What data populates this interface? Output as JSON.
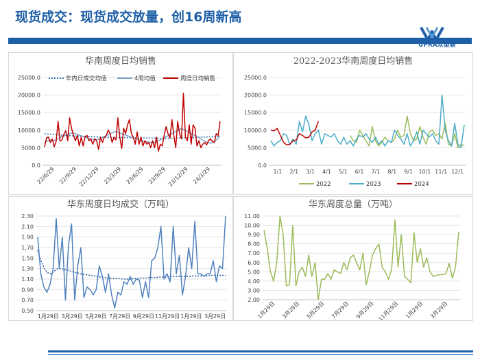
{
  "header": {
    "title": "现货成交：现货成交放量，创16周新高",
    "logo_text": "UPRA众塑联"
  },
  "chart_data": [
    {
      "type": "line",
      "title": "华南周度日均销售",
      "ylim": [
        0,
        25000
      ],
      "y_ticks": [
        "0.0",
        "5000.0",
        "10000.0",
        "15000.0",
        "20000.0",
        "25000.0"
      ],
      "x_tick_labels": [
        "22/6/29",
        "22/9/29",
        "22/12/29",
        "23/3/29",
        "23/6/29",
        "23/9/29",
        "23/12/29",
        "24/3/29"
      ],
      "series": [
        {
          "name": "年内日成交均值",
          "color": "#2e75b6",
          "style": "dotted",
          "values": [
            9000,
            8950,
            8900,
            8850,
            8800,
            8760,
            8720,
            8680,
            8640,
            8600,
            8560,
            8520,
            8480,
            8440,
            8400,
            8360,
            8320,
            8290,
            8260,
            8230,
            8200,
            8180,
            8160,
            8140,
            8120,
            8100,
            8080,
            8060,
            8040,
            8020,
            8000,
            7990,
            7980,
            7970,
            7960,
            7950,
            7940,
            7930,
            7920,
            7910,
            7900,
            7890,
            7880,
            7870,
            7860,
            7850,
            7840,
            7830,
            7820,
            7810,
            7800,
            7790,
            7780,
            7770,
            7760,
            7750,
            7740,
            7730,
            7720,
            7710,
            7700,
            7690,
            7680,
            7680,
            7680,
            7690,
            7700,
            7720,
            7740,
            7760,
            7780,
            7800,
            7820,
            7840,
            7860,
            7880,
            7900,
            7920,
            7940,
            7960,
            7980,
            8000,
            8020,
            8040,
            8060,
            8080,
            8100,
            8120,
            8140,
            8160,
            8180,
            8200
          ]
        },
        {
          "name": "4周均值",
          "color": "#7f9fc7",
          "style": "solid",
          "values": [
            6500,
            6800,
            7000,
            7200,
            7100,
            7000,
            7300,
            7600,
            7900,
            8200,
            8400,
            8600,
            8800,
            9000,
            9200,
            9100,
            9000,
            8800,
            8600,
            8400,
            8200,
            8000,
            7800,
            7600,
            7500,
            7400,
            7300,
            7300,
            7400,
            7600,
            7800,
            8100,
            8400,
            8700,
            9000,
            9200,
            9400,
            9600,
            9400,
            9200,
            9000,
            8800,
            8600,
            8400,
            8200,
            8000,
            7800,
            7600,
            7400,
            7200,
            7000,
            6900,
            6800,
            6700,
            6600,
            6500,
            6500,
            6600,
            6800,
            7000,
            7200,
            7500,
            7800,
            8100,
            8400,
            8700,
            9000,
            9300,
            9600,
            9900,
            10200,
            10500,
            10200,
            9900,
            9600,
            9300,
            9000,
            8700,
            8400,
            8100,
            7800,
            7500,
            7200,
            6900,
            6600,
            6400,
            6300,
            6400,
            6700,
            7200,
            7800,
            8400
          ]
        },
        {
          "name": "周度日均销售",
          "color": "#c00000",
          "style": "solid",
          "values": [
            5200,
            7800,
            8000,
            6500,
            7500,
            5300,
            6800,
            12500,
            6900,
            7200,
            8800,
            9800,
            7000,
            13500,
            10500,
            8500,
            7000,
            8500,
            5500,
            8000,
            5500,
            8200,
            8500,
            7000,
            7500,
            6000,
            7500,
            7000,
            4500,
            8000,
            6500,
            8000,
            8500,
            10000,
            9000,
            6500,
            8000,
            7200,
            13500,
            8000,
            4800,
            10500,
            9000,
            11500,
            13000,
            9000,
            8000,
            6000,
            9500,
            6000,
            8000,
            5500,
            7000,
            6000,
            6500,
            5000,
            7000,
            5000,
            8000,
            4000,
            6000,
            5500,
            8500,
            11000,
            9000,
            7800,
            13000,
            8500,
            5000,
            12500,
            9000,
            7500,
            20500,
            8000,
            7000,
            11500,
            6000,
            11500,
            10500,
            5500,
            7000,
            5000,
            6000,
            6500,
            5800,
            7000,
            7500,
            6800,
            6500,
            9000,
            8500,
            12500
          ]
        }
      ]
    },
    {
      "type": "line",
      "title": "2022-2023华南周度日均销售",
      "ylim": [
        0,
        25000
      ],
      "y_ticks": [
        "0.0",
        "5000.0",
        "10000.0",
        "15000.0",
        "20000.0",
        "25000.0"
      ],
      "x_tick_labels": [
        "1/1",
        "2/1",
        "3/1",
        "4/1",
        "5/1",
        "6/1",
        "7/1",
        "8/1",
        "9/1",
        "10/1",
        "11/1",
        "12/1"
      ],
      "series": [
        {
          "name": "2022",
          "color": "#9bbb59",
          "style": "solid",
          "values": [
            null,
            null,
            null,
            null,
            null,
            null,
            null,
            null,
            null,
            null,
            null,
            null,
            null,
            null,
            null,
            null,
            null,
            null,
            null,
            null,
            null,
            null,
            null,
            null,
            null,
            8500,
            7000,
            6500,
            10000,
            8500,
            7000,
            5500,
            11000,
            7000,
            5500,
            6500,
            8000,
            7000,
            6500,
            7500,
            10000,
            8000,
            8500,
            14000,
            9000,
            7000,
            7500,
            11000,
            8000,
            6000,
            9500,
            10000,
            8500,
            9000,
            7500,
            12000,
            6000,
            5500,
            9000,
            5000,
            6000,
            5500
          ]
        },
        {
          "name": "2023",
          "color": "#4bacc6",
          "style": "solid",
          "values": [
            7000,
            5500,
            6500,
            7000,
            9000,
            8500,
            5800,
            7500,
            6000,
            12500,
            9500,
            14000,
            11500,
            7000,
            9000,
            10000,
            6000,
            9000,
            8500,
            8000,
            9000,
            7000,
            6000,
            8000,
            6000,
            7000,
            5500,
            7500,
            8500,
            8000,
            9000,
            7500,
            6500,
            8000,
            6000,
            7000,
            5500,
            7000,
            6500,
            10000,
            8500,
            7500,
            6000,
            9000,
            5500,
            7000,
            9500,
            6000,
            10000,
            9000,
            8000,
            9000,
            7000,
            6000,
            20000,
            10000,
            7000,
            5500,
            12000,
            6000,
            5000,
            11500
          ]
        },
        {
          "name": "2024",
          "color": "#c00000",
          "style": "solid",
          "values": [
            10000,
            9800,
            10500,
            8500,
            6500,
            5800,
            6000,
            7000,
            7200,
            9000,
            8500,
            7800,
            8000,
            9500,
            10000,
            12500
          ]
        }
      ]
    },
    {
      "type": "line",
      "title": "华东周度日均成交（万吨）",
      "ylim": [
        0.5,
        2.3
      ],
      "y_ticks": [
        "0.50",
        "0.70",
        "0.90",
        "1.10",
        "1.30",
        "1.50",
        "1.70",
        "1.90",
        "2.10",
        "2.30"
      ],
      "x_tick_labels": [
        "1月29日",
        "3月29日",
        "5月29日",
        "7月29日",
        "9月29日",
        "11月29日",
        "1月29日",
        "3月29日"
      ],
      "series": [
        {
          "name": "",
          "color": "#2e5f9e",
          "style": "dotted",
          "values": [
            1.65,
            1.45,
            1.3,
            1.22,
            1.2,
            1.25,
            1.3,
            1.3,
            1.28,
            1.27,
            1.25,
            1.23,
            1.22,
            1.2,
            1.19,
            1.18,
            1.17,
            1.16,
            1.15,
            1.14,
            1.13,
            1.12,
            1.12,
            1.11,
            1.11,
            1.11,
            1.1,
            1.1,
            1.1,
            1.11,
            1.11,
            1.12,
            1.12,
            1.12,
            1.13,
            1.13,
            1.13,
            1.14,
            1.14,
            1.14,
            1.14,
            1.15,
            1.15,
            1.15,
            1.15,
            1.15,
            1.15,
            1.16,
            1.16,
            1.16,
            1.16,
            1.16,
            1.17,
            1.17,
            1.17,
            1.17,
            1.17,
            1.17
          ]
        },
        {
          "name": "",
          "color": "#4f81bd",
          "style": "solid",
          "values": [
            1.9,
            1.2,
            0.95,
            0.85,
            1.0,
            1.3,
            2.25,
            1.3,
            1.9,
            0.7,
            1.75,
            2.15,
            0.7,
            1.35,
            1.7,
            0.75,
            0.95,
            0.9,
            0.8,
            0.9,
            1.35,
            1.15,
            0.85,
            1.2,
            0.8,
            0.55,
            0.85,
            0.8,
            1.05,
            1.0,
            1.15,
            1.0,
            1.1,
            1.08,
            0.75,
            1.05,
            0.75,
            1.45,
            1.5,
            1.7,
            2.1,
            1.1,
            1.2,
            1.05,
            2.1,
            1.2,
            1.55,
            0.8,
            1.15,
            1.7,
            1.3,
            2.2,
            1.2,
            1.2,
            1.15,
            1.2,
            1.2,
            1.45,
            1.05,
            1.35,
            1.3,
            2.35
          ]
        }
      ]
    },
    {
      "type": "line",
      "title": "华东周度总量（万吨）",
      "ylim": [
        2.0,
        11.0
      ],
      "y_ticks": [
        "2.00",
        "3.00",
        "4.00",
        "5.00",
        "6.00",
        "7.00",
        "8.00",
        "9.00",
        "10.00",
        "11.00"
      ],
      "x_tick_labels": [
        "1月29日",
        "3月29日",
        "5月29日",
        "7月29日",
        "9月29日",
        "11月29日",
        "1月29日",
        "3月29日"
      ],
      "series": [
        {
          "name": "",
          "color": "#9bbb59",
          "style": "solid",
          "values": [
            9.5,
            7.5,
            5.0,
            4.0,
            6.0,
            11.3,
            9.0,
            3.5,
            3.6,
            10.0,
            3.5,
            5.0,
            5.5,
            4.5,
            6.8,
            4.5,
            6.0,
            2.0,
            4.2,
            4.2,
            4.8,
            4.2,
            5.2,
            5.0,
            4.8,
            6.0,
            5.2,
            6.5,
            6.8,
            6.0,
            5.2,
            7.0,
            3.6,
            5.0,
            6.8,
            7.5,
            8.0,
            5.5,
            5.0,
            4.2,
            5.3,
            10.6,
            5.5,
            9.0,
            4.5,
            4.2,
            3.8,
            9.2,
            6.0,
            7.5,
            5.5,
            6.5,
            5.0,
            4.5,
            4.6,
            4.7,
            4.7,
            4.8,
            5.9,
            4.3,
            5.5,
            9.3
          ]
        }
      ]
    }
  ]
}
